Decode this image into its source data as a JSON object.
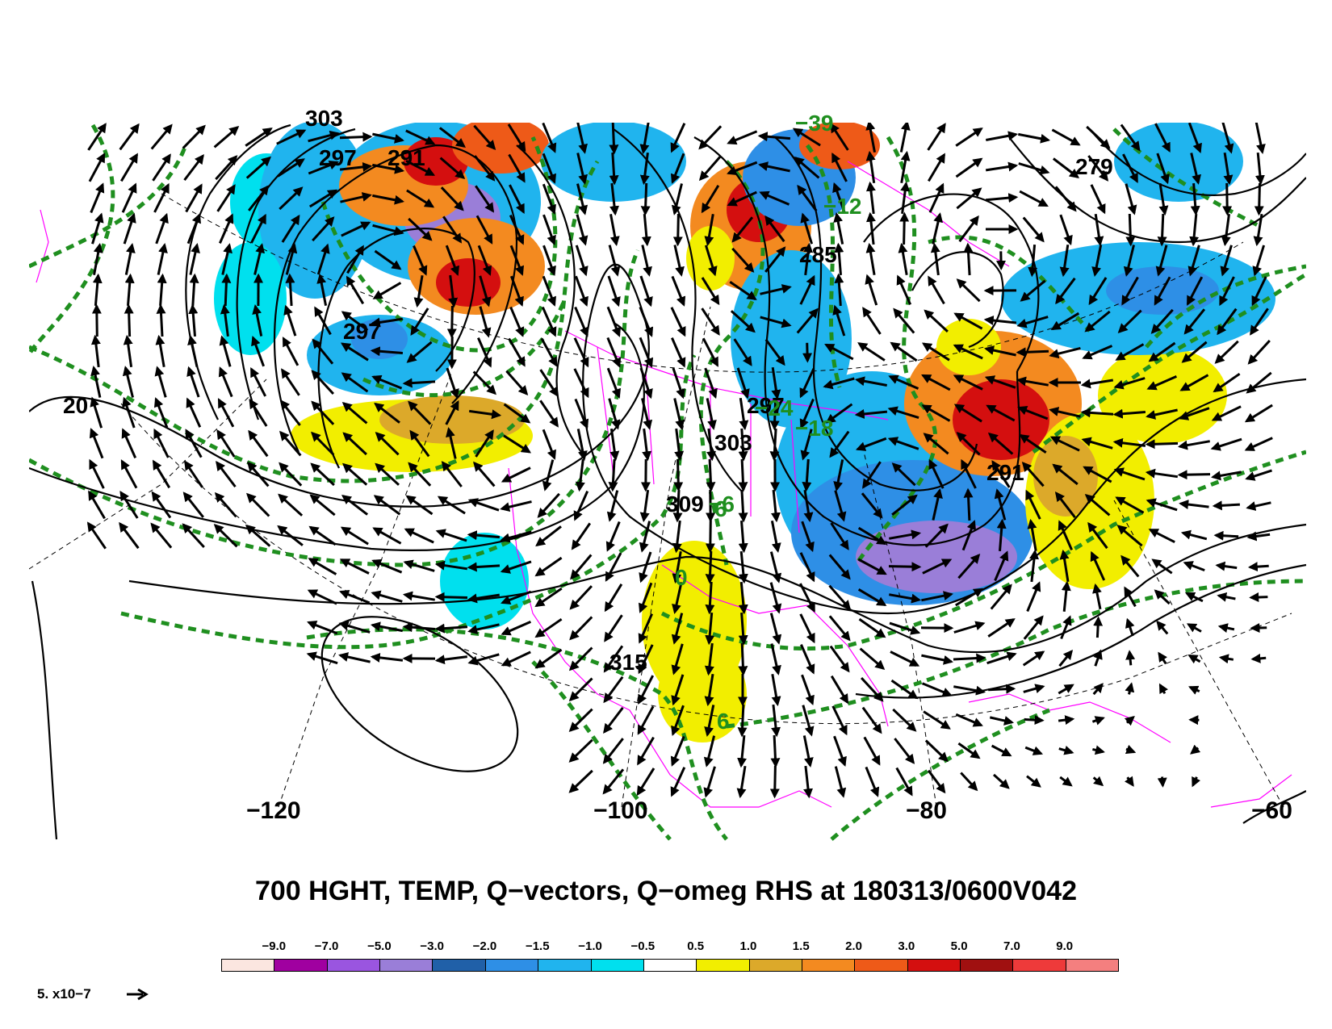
{
  "title": "700 HGHT, TEMP, Q−vectors, Q−omeg RHS at 180313/0600V042",
  "colorbar": {
    "labels": [
      "−9.0",
      "−7.0",
      "−5.0",
      "−3.0",
      "−2.0",
      "−1.5",
      "−1.0",
      "−0.5",
      "0.5",
      "1.0",
      "1.5",
      "2.0",
      "3.0",
      "5.0",
      "7.0",
      "9.0"
    ],
    "colors": [
      "#fbe6e0",
      "#a000a0",
      "#9a55e0",
      "#9a7ed8",
      "#2060a8",
      "#2e8fe6",
      "#20b4ee",
      "#00e0ee",
      "#ffffff",
      "#f2ee00",
      "#dca92a",
      "#f38a20",
      "#ee5a18",
      "#d40f0f",
      "#a01010",
      "#ee3a3a",
      "#f47f7f"
    ]
  },
  "vector_scale": {
    "label": "5. x10−7"
  },
  "longitude_labels": [
    "−120",
    "−100",
    "−80",
    "−60"
  ],
  "height_contour_labels": [
    "303",
    "297",
    "291",
    "297",
    "279",
    "285",
    "291",
    "297",
    "303",
    "309",
    "315",
    "20"
  ],
  "temp_contour_labels": [
    "−39",
    "−12",
    "−6",
    "0",
    "6",
    "−18",
    "−24",
    "6"
  ],
  "colors": {
    "height": "#000000",
    "temp": "#1f8f1f",
    "political": "#ff00ff",
    "grid": "#000000"
  }
}
